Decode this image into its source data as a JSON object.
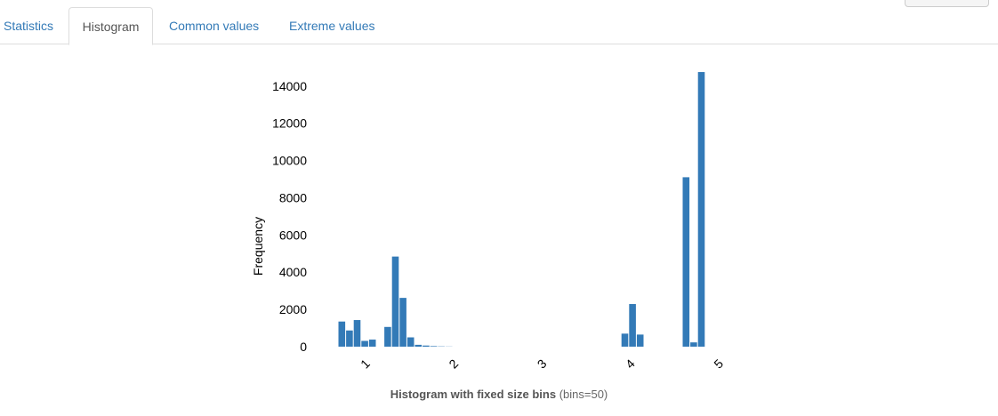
{
  "tabs": [
    {
      "label": "Statistics",
      "active": false
    },
    {
      "label": "Histogram",
      "active": true
    },
    {
      "label": "Common values",
      "active": false
    },
    {
      "label": "Extreme values",
      "active": false
    }
  ],
  "caption": {
    "bold": "Histogram with fixed size bins",
    "normal": " (bins=50)"
  },
  "chart_data": {
    "type": "bar",
    "title": "",
    "xlabel": "",
    "ylabel": "Frequency",
    "bar_color": "#337ab7",
    "bins": 50,
    "x_range": [
      0.67,
      5.0
    ],
    "xlim": [
      0.67,
      5.0
    ],
    "ylim": [
      0,
      14800
    ],
    "x_ticks": [
      1,
      2,
      3,
      4,
      5
    ],
    "y_ticks": [
      0,
      2000,
      4000,
      6000,
      8000,
      10000,
      12000,
      14000
    ],
    "grid": false,
    "legend": "none",
    "values": [
      1350,
      870,
      1430,
      310,
      380,
      0,
      1060,
      4840,
      2620,
      500,
      100,
      60,
      30,
      15,
      8,
      0,
      0,
      0,
      0,
      0,
      0,
      0,
      0,
      0,
      0,
      0,
      0,
      0,
      0,
      0,
      0,
      0,
      0,
      0,
      0,
      0,
      0,
      700,
      2290,
      650,
      0,
      0,
      0,
      0,
      0,
      9100,
      230,
      14750,
      0,
      0
    ]
  }
}
